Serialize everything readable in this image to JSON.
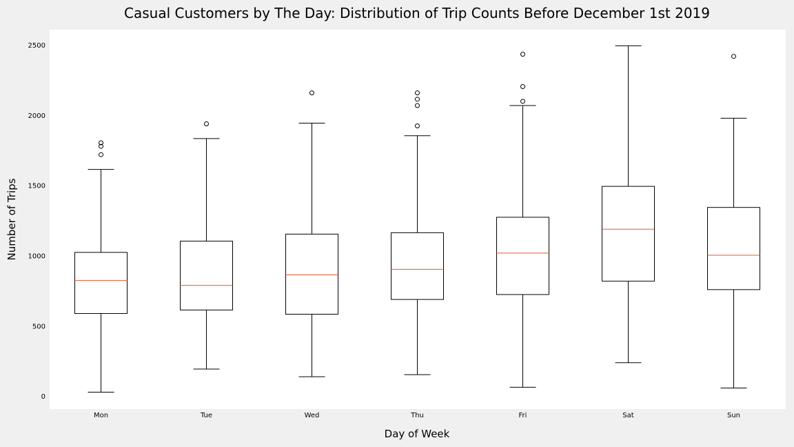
{
  "chart_data": {
    "type": "box",
    "title": "Casual Customers by The Day: Distribution of Trip Counts Before December 1st 2019",
    "xlabel": "Day of Week",
    "ylabel": "Number of Trips",
    "categories": [
      "Mon",
      "Tue",
      "Wed",
      "Thu",
      "Fri",
      "Sat",
      "Sun"
    ],
    "yticks": [
      0,
      500,
      1000,
      1500,
      2000,
      2500
    ],
    "ylim": [
      -90,
      2610
    ],
    "grid": false,
    "colors": {
      "box": "#000000",
      "median": "#e8552d",
      "background": "#ffffff",
      "figure_background": "#f0f0f0"
    },
    "boxes": [
      {
        "label": "Mon",
        "whisker_low": 30,
        "q1": 590,
        "median": 825,
        "q3": 1025,
        "whisker_high": 1615,
        "outliers": [
          1720,
          1780,
          1805
        ]
      },
      {
        "label": "Tue",
        "whisker_low": 195,
        "q1": 615,
        "median": 790,
        "q3": 1105,
        "whisker_high": 1835,
        "outliers": [
          1940
        ]
      },
      {
        "label": "Wed",
        "whisker_low": 140,
        "q1": 585,
        "median": 865,
        "q3": 1155,
        "whisker_high": 1945,
        "outliers": [
          2160
        ]
      },
      {
        "label": "Thu",
        "whisker_low": 155,
        "q1": 690,
        "median": 905,
        "q3": 1165,
        "whisker_high": 1855,
        "outliers": [
          1925,
          2070,
          2115,
          2160
        ]
      },
      {
        "label": "Fri",
        "whisker_low": 65,
        "q1": 725,
        "median": 1020,
        "q3": 1275,
        "whisker_high": 2070,
        "outliers": [
          2100,
          2205,
          2435
        ]
      },
      {
        "label": "Sat",
        "whisker_low": 240,
        "q1": 820,
        "median": 1190,
        "q3": 1495,
        "whisker_high": 2495,
        "outliers": []
      },
      {
        "label": "Sun",
        "whisker_low": 60,
        "q1": 760,
        "median": 1005,
        "q3": 1345,
        "whisker_high": 1980,
        "outliers": [
          2420
        ]
      }
    ]
  }
}
